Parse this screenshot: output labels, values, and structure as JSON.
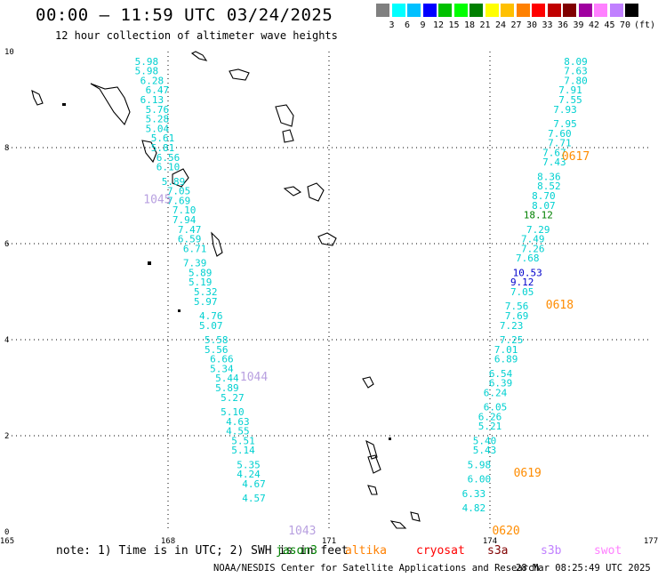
{
  "header": {
    "title": "00:00 – 11:59 UTC 03/24/2025",
    "subtitle": "12 hour collection of altimeter wave heights"
  },
  "colorbar": {
    "units": "(ft)",
    "labels": [
      "3",
      "6",
      "9",
      "12",
      "15",
      "18",
      "21",
      "24",
      "27",
      "30",
      "33",
      "36",
      "39",
      "42",
      "45",
      "70"
    ],
    "colors": [
      "#808080",
      "#00ffff",
      "#00c0ff",
      "#0000ff",
      "#00c000",
      "#00ff00",
      "#008000",
      "#ffff00",
      "#ffc000",
      "#ff8000",
      "#ff0000",
      "#c00000",
      "#800000",
      "#a000a0",
      "#ff80ff",
      "#c080ff",
      "#000000"
    ]
  },
  "chart_data": {
    "type": "scatter",
    "title": "00:00 – 11:59 UTC 03/24/2025",
    "subtitle": "12 hour collection of altimeter wave heights",
    "xlim": [
      165,
      177
    ],
    "ylim": [
      0,
      10
    ],
    "xticks": [
      "165",
      "168",
      "171",
      "174",
      "177"
    ],
    "yticks": [
      "0",
      "2",
      "4",
      "6",
      "8",
      "10"
    ],
    "grid": true,
    "orbits": [
      {
        "name": "1045",
        "x": 167.8,
        "y": 6.9
      },
      {
        "name": "1044",
        "x": 169.6,
        "y": 3.2
      },
      {
        "name": "1043",
        "x": 170.5,
        "y": 0.0
      },
      {
        "name": "0617",
        "x": 175.6,
        "y": 7.8
      },
      {
        "name": "0618",
        "x": 175.3,
        "y": 4.7
      },
      {
        "name": "0619",
        "x": 174.7,
        "y": 1.2
      },
      {
        "name": "0620",
        "x": 174.3,
        "y": 0.0
      }
    ],
    "tracks": [
      {
        "points": [
          {
            "x": 167.6,
            "y": 9.8,
            "v": "5.98"
          },
          {
            "x": 167.6,
            "y": 9.6,
            "v": "5.98"
          },
          {
            "x": 167.7,
            "y": 9.4,
            "v": "6.28"
          },
          {
            "x": 167.8,
            "y": 9.2,
            "v": "6.47"
          },
          {
            "x": 167.7,
            "y": 9.0,
            "v": "6.13"
          },
          {
            "x": 167.8,
            "y": 8.8,
            "v": "5.76"
          },
          {
            "x": 167.8,
            "y": 8.6,
            "v": "5.28"
          },
          {
            "x": 167.8,
            "y": 8.4,
            "v": "5.04"
          },
          {
            "x": 167.9,
            "y": 8.2,
            "v": "5.61"
          },
          {
            "x": 167.9,
            "y": 8.0,
            "v": "5.81"
          },
          {
            "x": 168.0,
            "y": 7.8,
            "v": "6.56"
          },
          {
            "x": 168.0,
            "y": 7.6,
            "v": "6.10"
          },
          {
            "x": 168.1,
            "y": 7.3,
            "v": "5.89"
          },
          {
            "x": 168.2,
            "y": 7.1,
            "v": "7.05"
          },
          {
            "x": 168.2,
            "y": 6.9,
            "v": "7.69"
          },
          {
            "x": 168.3,
            "y": 6.7,
            "v": "7.10"
          },
          {
            "x": 168.3,
            "y": 6.5,
            "v": "7.94"
          },
          {
            "x": 168.4,
            "y": 6.3,
            "v": "7.47"
          },
          {
            "x": 168.4,
            "y": 6.1,
            "v": "6.59"
          },
          {
            "x": 168.5,
            "y": 5.9,
            "v": "6.71"
          },
          {
            "x": 168.5,
            "y": 5.6,
            "v": "7.39"
          },
          {
            "x": 168.6,
            "y": 5.4,
            "v": "5.89"
          },
          {
            "x": 168.6,
            "y": 5.2,
            "v": "5.19"
          },
          {
            "x": 168.7,
            "y": 5.0,
            "v": "5.32"
          },
          {
            "x": 168.7,
            "y": 4.8,
            "v": "5.97"
          },
          {
            "x": 168.8,
            "y": 4.5,
            "v": "4.76"
          },
          {
            "x": 168.8,
            "y": 4.3,
            "v": "5.07"
          },
          {
            "x": 168.9,
            "y": 4.0,
            "v": "5.58"
          },
          {
            "x": 168.9,
            "y": 3.8,
            "v": "5.56"
          },
          {
            "x": 169.0,
            "y": 3.6,
            "v": "6.66"
          },
          {
            "x": 169.0,
            "y": 3.4,
            "v": "5.34"
          },
          {
            "x": 169.1,
            "y": 3.2,
            "v": "5.44"
          },
          {
            "x": 169.1,
            "y": 3.0,
            "v": "5.89"
          },
          {
            "x": 169.2,
            "y": 2.8,
            "v": "5.27"
          },
          {
            "x": 169.2,
            "y": 2.5,
            "v": "5.10"
          },
          {
            "x": 169.3,
            "y": 2.3,
            "v": "4.63"
          },
          {
            "x": 169.3,
            "y": 2.1,
            "v": "4.55"
          },
          {
            "x": 169.4,
            "y": 1.9,
            "v": "5.51"
          },
          {
            "x": 169.4,
            "y": 1.7,
            "v": "5.14"
          },
          {
            "x": 169.5,
            "y": 1.4,
            "v": "5.35"
          },
          {
            "x": 169.5,
            "y": 1.2,
            "v": "4.24"
          },
          {
            "x": 169.6,
            "y": 1.0,
            "v": "4.67"
          },
          {
            "x": 169.6,
            "y": 0.7,
            "v": "4.57"
          }
        ]
      },
      {
        "points": [
          {
            "x": 175.6,
            "y": 9.8,
            "v": "8.09"
          },
          {
            "x": 175.6,
            "y": 9.6,
            "v": "7.63"
          },
          {
            "x": 175.6,
            "y": 9.4,
            "v": "7.80"
          },
          {
            "x": 175.5,
            "y": 9.2,
            "v": "7.91"
          },
          {
            "x": 175.5,
            "y": 9.0,
            "v": "7.55"
          },
          {
            "x": 175.4,
            "y": 8.8,
            "v": "7.93"
          },
          {
            "x": 175.4,
            "y": 8.5,
            "v": "7.95"
          },
          {
            "x": 175.3,
            "y": 8.3,
            "v": "7.60"
          },
          {
            "x": 175.3,
            "y": 8.1,
            "v": "7.71"
          },
          {
            "x": 175.2,
            "y": 7.9,
            "v": "7.67"
          },
          {
            "x": 175.2,
            "y": 7.7,
            "v": "7.43"
          },
          {
            "x": 175.1,
            "y": 7.4,
            "v": "8.36"
          },
          {
            "x": 175.1,
            "y": 7.2,
            "v": "8.52"
          },
          {
            "x": 175.0,
            "y": 7.0,
            "v": "8.70"
          },
          {
            "x": 175.0,
            "y": 6.8,
            "v": "8.07"
          },
          {
            "x": 174.9,
            "y": 6.6,
            "v": "18.12"
          },
          {
            "x": 174.9,
            "y": 6.3,
            "v": "7.29"
          },
          {
            "x": 174.8,
            "y": 6.1,
            "v": "7.49"
          },
          {
            "x": 174.8,
            "y": 5.9,
            "v": "7.26"
          },
          {
            "x": 174.7,
            "y": 5.7,
            "v": "7.68"
          },
          {
            "x": 174.7,
            "y": 5.4,
            "v": "10.53"
          },
          {
            "x": 174.6,
            "y": 5.2,
            "v": "9.12"
          },
          {
            "x": 174.6,
            "y": 5.0,
            "v": "7.05"
          },
          {
            "x": 174.5,
            "y": 4.7,
            "v": "7.56"
          },
          {
            "x": 174.5,
            "y": 4.5,
            "v": "7.69"
          },
          {
            "x": 174.4,
            "y": 4.3,
            "v": "7.23"
          },
          {
            "x": 174.4,
            "y": 4.0,
            "v": "7.25"
          },
          {
            "x": 174.3,
            "y": 3.8,
            "v": "7.01"
          },
          {
            "x": 174.3,
            "y": 3.6,
            "v": "6.89"
          },
          {
            "x": 174.2,
            "y": 3.3,
            "v": "6.54"
          },
          {
            "x": 174.2,
            "y": 3.1,
            "v": "6.39"
          },
          {
            "x": 174.1,
            "y": 2.9,
            "v": "6.24"
          },
          {
            "x": 174.1,
            "y": 2.6,
            "v": "6.05"
          },
          {
            "x": 174.0,
            "y": 2.4,
            "v": "6.26"
          },
          {
            "x": 174.0,
            "y": 2.2,
            "v": "5.21"
          },
          {
            "x": 173.9,
            "y": 1.9,
            "v": "5.40"
          },
          {
            "x": 173.9,
            "y": 1.7,
            "v": "5.43"
          },
          {
            "x": 173.8,
            "y": 1.4,
            "v": "5.98"
          },
          {
            "x": 173.8,
            "y": 1.1,
            "v": "6.00"
          },
          {
            "x": 173.7,
            "y": 0.8,
            "v": "6.33"
          },
          {
            "x": 173.7,
            "y": 0.5,
            "v": "4.82"
          }
        ]
      }
    ]
  },
  "note": "note: 1) Time is in UTC; 2) SWH is in feet",
  "satellites": [
    {
      "name": "jason3",
      "color": "#008000"
    },
    {
      "name": "altika",
      "color": "#ff8000"
    },
    {
      "name": "cryosat",
      "color": "#ff0000"
    },
    {
      "name": "s3a",
      "color": "#800000"
    },
    {
      "name": "s3b",
      "color": "#c080ff"
    },
    {
      "name": "swot",
      "color": "#ff80ff"
    }
  ],
  "footer": {
    "org": "NOAA/NESDIS Center for Satellite Applications and Research",
    "timestamp": "28 Mar 08:25:49 UTC 2025"
  }
}
